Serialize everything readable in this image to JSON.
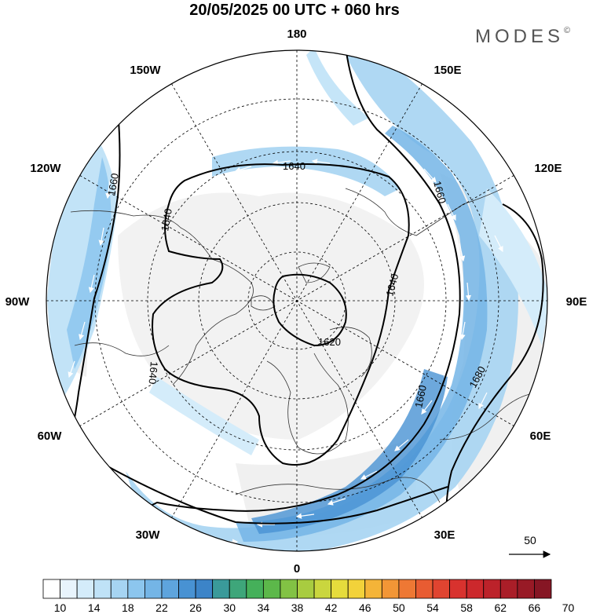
{
  "header": {
    "title": "20/05/2025  00 UTC  + 060 hrs",
    "brand": "MODES",
    "brand_mark": "©"
  },
  "map": {
    "projection": "north-polar-stereographic",
    "longitude_labels": {
      "top": "180",
      "top_right": "150E",
      "right_upper": "120E",
      "right": "90E",
      "right_lower": "60E",
      "bottom_right": "30E",
      "bottom": "0",
      "bottom_left": "30W",
      "left_lower": "60W",
      "left": "90W",
      "left_upper": "120W",
      "top_left": "150W"
    },
    "contour_labels": [
      "1620",
      "1640",
      "1640",
      "1640",
      "1640",
      "1660",
      "1660",
      "1660",
      "1680"
    ],
    "reference_vector": {
      "value": "50"
    }
  },
  "colorbar": {
    "ticks": [
      "10",
      "14",
      "18",
      "22",
      "26",
      "30",
      "34",
      "38",
      "42",
      "46",
      "50",
      "54",
      "58",
      "62",
      "66",
      "70"
    ],
    "colors": [
      "#ffffff",
      "#e8f4fc",
      "#d4ecfa",
      "#bfe2f7",
      "#a6d4f2",
      "#8cc6ee",
      "#74b5e6",
      "#5ea4dd",
      "#4892d3",
      "#3c84c8",
      "#3a9a9a",
      "#3ea67a",
      "#45b05a",
      "#5cb84a",
      "#82c244",
      "#a8cc40",
      "#cad63e",
      "#e6dc3c",
      "#f2d23a",
      "#f4b438",
      "#f29636",
      "#ee7834",
      "#e85c32",
      "#e04430",
      "#d8322e",
      "#cc282c",
      "#bc222a",
      "#aa1e28",
      "#981a26",
      "#861624"
    ]
  }
}
